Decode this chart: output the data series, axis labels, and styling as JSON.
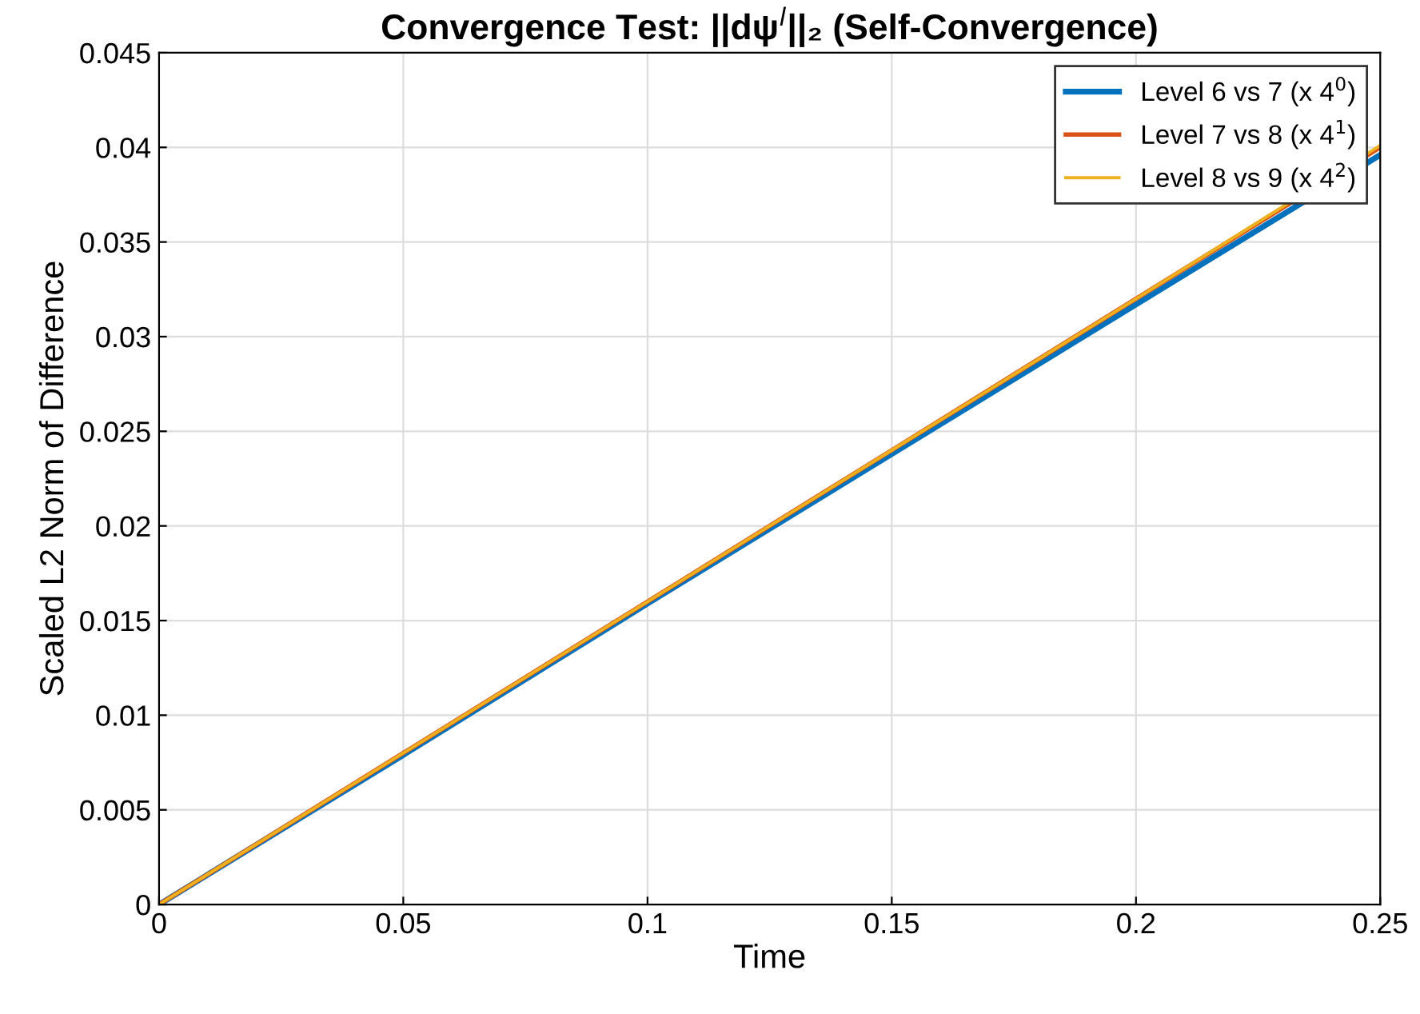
{
  "chart_data": {
    "type": "line",
    "title": "Convergence Test: ||dψ$^{l}$||₂ (Self-Convergence)",
    "xlabel": "Time",
    "ylabel": "Scaled L2 Norm of Difference",
    "x": [
      0,
      0.05,
      0.1,
      0.15,
      0.2,
      0.25
    ],
    "series": [
      {
        "name": "Level 6 vs 7 (x 4$^{0}$)",
        "color": "#0072bd",
        "values": [
          0,
          0.0079,
          0.0159,
          0.0238,
          0.0317,
          0.0396
        ]
      },
      {
        "name": "Level 7 vs 8 (x 4$^{1}$)",
        "color": "#d95319",
        "values": [
          0,
          0.008,
          0.016,
          0.024,
          0.032,
          0.04
        ]
      },
      {
        "name": "Level 8 vs 9 (x 4$^{2}$)",
        "color": "#edb120",
        "values": [
          0,
          0.008,
          0.016,
          0.024,
          0.032,
          0.0401
        ]
      }
    ],
    "xlim": [
      0,
      0.25
    ],
    "xticks": [
      0,
      0.05,
      0.1,
      0.15,
      0.2,
      0.25
    ],
    "ylim": [
      0,
      0.045
    ],
    "yticks": [
      0,
      0.005,
      0.01,
      0.015,
      0.02,
      0.025,
      0.03,
      0.035,
      0.04,
      0.045
    ],
    "grid": true,
    "legend": "top right",
    "marker": "none",
    "line_style": "solid"
  }
}
